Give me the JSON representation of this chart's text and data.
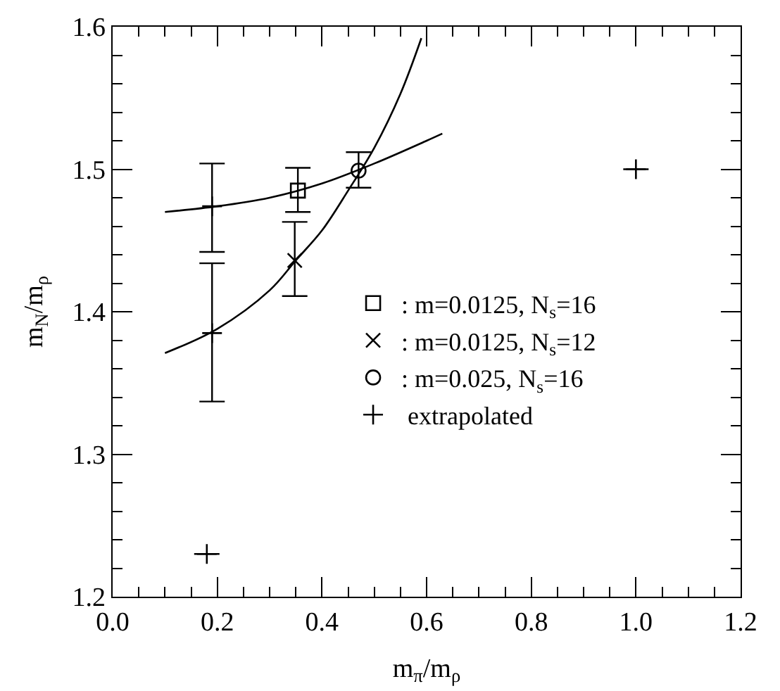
{
  "chart_data": {
    "type": "scatter",
    "xlabel": "m$_{π}$/m$_{ρ}$",
    "ylabel": "m$_{N}$/m$_{ρ}$",
    "xlim": [
      0,
      1.2
    ],
    "ylim": [
      1.2,
      1.6
    ],
    "xticks": [
      {
        "value": 0,
        "label": "0.0"
      },
      0.2,
      0.4,
      0.6,
      0.8,
      {
        "value": 1,
        "label": "1.0"
      },
      1.2
    ],
    "yticks": [
      1.2,
      1.3,
      1.4,
      1.5,
      1.6
    ],
    "legend": "right",
    "series": [
      {
        "name": ": m=0.0125, N$_{s}$=16",
        "color": "#000000",
        "marker": "square",
        "x": [
          0.354
        ],
        "values": [
          1.485
        ],
        "errors": [
          [
            1.47,
            1.501
          ]
        ]
      },
      {
        "name": ": m=0.0125, N$_{s}$=12",
        "color": "#000000",
        "marker": "cross",
        "x": [
          0.348
        ],
        "values": [
          1.436
        ],
        "errors": [
          [
            1.411,
            1.463
          ]
        ]
      },
      {
        "name": ": m=0.025, N$_{s}$=16",
        "color": "#000000",
        "marker": "circle",
        "x": [
          0.47
        ],
        "values": [
          1.499
        ],
        "errors": [
          [
            1.487,
            1.512
          ]
        ]
      },
      {
        "name": " extrapolated",
        "color": "#000000",
        "marker": "cross",
        "x": [
          0.19,
          0.19,
          0.18,
          1.0
        ],
        "values": [
          1.474,
          1.385,
          1.23,
          1.5
        ],
        "errors": [
          [
            1.442,
            1.504
          ],
          [
            1.337,
            1.434
          ],
          null,
          null
        ]
      },
      {
        "type": "line",
        "color": "#000000",
        "marker": "none",
        "x": [
          0.1,
          0.2,
          0.3,
          0.4,
          0.5,
          0.6,
          0.63
        ],
        "values": [
          1.47,
          1.474,
          1.48,
          1.49,
          1.504,
          1.52,
          1.525
        ]
      },
      {
        "type": "line",
        "color": "#000000",
        "marker": "none",
        "x": [
          0.1,
          0.2,
          0.3,
          0.35,
          0.4,
          0.45,
          0.5,
          0.55,
          0.59
        ],
        "values": [
          1.371,
          1.388,
          1.415,
          1.436,
          1.457,
          1.485,
          1.515,
          1.553,
          1.592
        ]
      }
    ]
  }
}
